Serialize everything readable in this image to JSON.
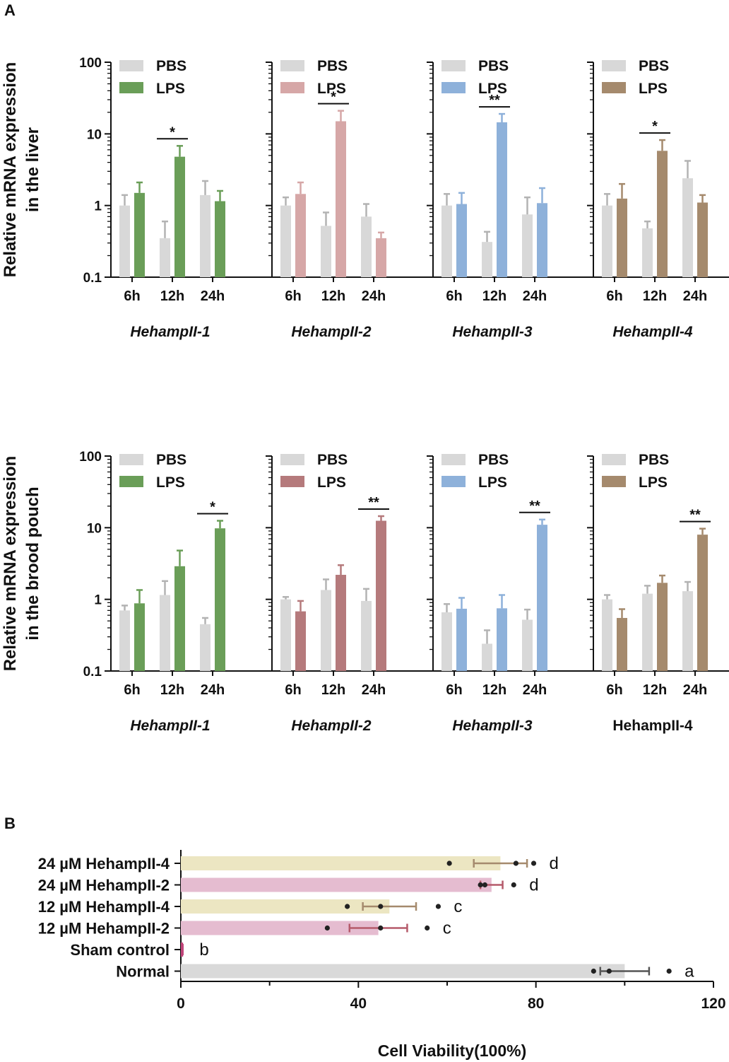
{
  "panel_labels": {
    "a": "A",
    "b": "B"
  },
  "colors": {
    "pbs": "#d8d8d8",
    "error_pbs": "#b3b3b3",
    "lps": [
      "#6a9e58",
      "#d6a7a7",
      "#8eb1da",
      "#a58a6d"
    ],
    "lps_row2": [
      "#6a9e58",
      "#b57a7c",
      "#8eb1da",
      "#a58a6d"
    ],
    "axis": "#111111",
    "panelB_bars": [
      "#ece6c2",
      "#e5bcd0",
      "#ece6c2",
      "#e5bcd0",
      "#c0457a",
      "#d9d9d9"
    ],
    "panelB_err": [
      "#a58a6d",
      "#b55a6a",
      "#a58a6d",
      "#b55a6a",
      "#c0457a",
      "#555555"
    ]
  },
  "chart_data": [
    {
      "type": "bar",
      "row": "liver",
      "ylabel_lines": [
        "Relative mRNA expression",
        "in the liver"
      ],
      "yscale": "log",
      "ylim": [
        0.1,
        100
      ],
      "ytick_labels": [
        "100",
        "10",
        "1",
        "0.1"
      ],
      "categories": [
        "6h",
        "12h",
        "24h"
      ],
      "legend": [
        "PBS",
        "LPS"
      ],
      "charts": [
        {
          "gene": "HehampII-1",
          "italic": true,
          "pbs": [
            1.0,
            0.35,
            1.4
          ],
          "pbs_err": [
            1.4,
            0.6,
            2.2
          ],
          "lps": [
            1.5,
            4.8,
            1.15
          ],
          "lps_err": [
            2.1,
            6.8,
            1.6
          ],
          "sig": [
            {
              "group": 1,
              "label": "*"
            }
          ]
        },
        {
          "gene": "HehampII-2",
          "italic": true,
          "pbs": [
            1.0,
            0.52,
            0.7
          ],
          "pbs_err": [
            1.3,
            0.8,
            1.05
          ],
          "lps": [
            1.45,
            15,
            0.35
          ],
          "lps_err": [
            2.1,
            21,
            0.42
          ],
          "sig": [
            {
              "group": 1,
              "label": "*"
            }
          ]
        },
        {
          "gene": "HehampII-3",
          "italic": true,
          "pbs": [
            1.0,
            0.31,
            0.75
          ],
          "pbs_err": [
            1.45,
            0.43,
            1.3
          ],
          "lps": [
            1.05,
            14.5,
            1.08
          ],
          "lps_err": [
            1.5,
            19,
            1.75
          ],
          "sig": [
            {
              "group": 1,
              "label": "**"
            }
          ]
        },
        {
          "gene": "HehampII-4",
          "italic": true,
          "pbs": [
            1.0,
            0.48,
            2.4
          ],
          "pbs_err": [
            1.45,
            0.6,
            4.2
          ],
          "lps": [
            1.25,
            5.8,
            1.1
          ],
          "lps_err": [
            2.0,
            8.2,
            1.4
          ],
          "sig": [
            {
              "group": 1,
              "label": "*"
            }
          ]
        }
      ]
    },
    {
      "type": "bar",
      "row": "brood_pouch",
      "ylabel_lines": [
        "Relative mRNA expression",
        "in the brood pouch"
      ],
      "yscale": "log",
      "ylim": [
        0.1,
        100
      ],
      "ytick_labels": [
        "100",
        "10",
        "1",
        "0.1"
      ],
      "categories": [
        "6h",
        "12h",
        "24h"
      ],
      "legend": [
        "PBS",
        "LPS"
      ],
      "charts": [
        {
          "gene": "HehampII-1",
          "italic": true,
          "pbs": [
            0.7,
            1.15,
            0.45
          ],
          "pbs_err": [
            0.82,
            1.8,
            0.55
          ],
          "lps": [
            0.88,
            2.9,
            9.8
          ],
          "lps_err": [
            1.35,
            4.8,
            12.5
          ],
          "sig": [
            {
              "group": 2,
              "label": "*"
            }
          ]
        },
        {
          "gene": "HehampII-2",
          "italic": true,
          "pbs": [
            1.0,
            1.35,
            0.95
          ],
          "pbs_err": [
            1.08,
            1.9,
            1.4
          ],
          "lps": [
            0.68,
            2.2,
            12.5
          ],
          "lps_err": [
            0.95,
            3.0,
            14.5
          ],
          "sig": [
            {
              "group": 2,
              "label": "**"
            }
          ]
        },
        {
          "gene": "HehampII-3",
          "italic": true,
          "pbs": [
            0.66,
            0.24,
            0.52
          ],
          "pbs_err": [
            0.86,
            0.37,
            0.72
          ],
          "lps": [
            0.74,
            0.75,
            11.0
          ],
          "lps_err": [
            1.05,
            1.15,
            13.0
          ],
          "sig": [
            {
              "group": 2,
              "label": "**"
            }
          ]
        },
        {
          "gene": "HehampII-4",
          "italic": false,
          "pbs": [
            1.0,
            1.2,
            1.3
          ],
          "pbs_err": [
            1.15,
            1.55,
            1.75
          ],
          "lps": [
            0.55,
            1.7,
            8.0
          ],
          "lps_err": [
            0.73,
            2.15,
            9.7
          ],
          "sig": [
            {
              "group": 2,
              "label": "**"
            }
          ]
        }
      ]
    },
    {
      "type": "bar",
      "orientation": "horizontal",
      "xlabel": "Cell Viability(100%)",
      "xlim": [
        0,
        120
      ],
      "xticks": [
        0,
        40,
        80,
        120
      ],
      "categories": [
        "24 µM HehampII-4",
        "24 µM HehampII-2",
        "12 µM HehampII-4",
        "12 µM HehampII-2",
        "Sham control",
        "Normal"
      ],
      "values": [
        72,
        70,
        47,
        44.5,
        0.5,
        100
      ],
      "error": [
        6,
        2.5,
        6,
        6.5,
        0,
        5.5
      ],
      "points": [
        [
          60.5,
          75.5,
          79.5
        ],
        [
          67.5,
          68.5,
          75
        ],
        [
          37.5,
          45,
          58
        ],
        [
          33,
          45,
          55.5
        ],
        [
          0.3,
          0.5,
          0.7
        ],
        [
          93,
          96.5,
          110
        ]
      ],
      "letters": [
        "d",
        "d",
        "c",
        "c",
        "b",
        "a"
      ]
    }
  ]
}
